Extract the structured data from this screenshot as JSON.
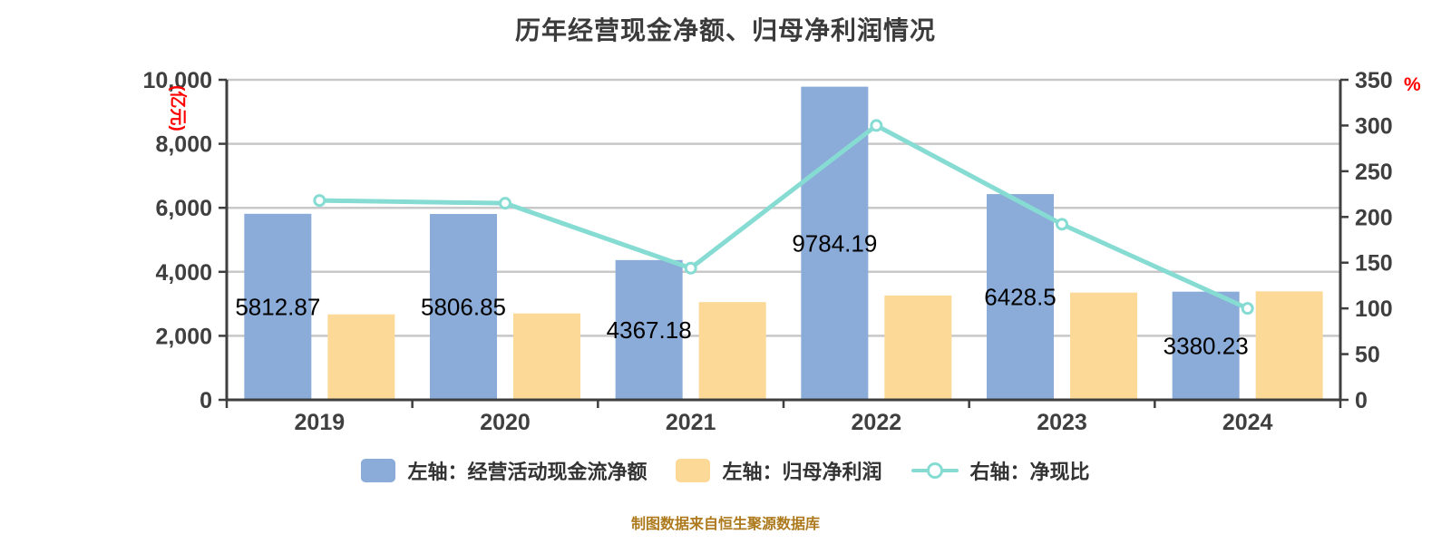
{
  "title": "历年经营现金净额、归母净利润情况",
  "source_note": "制图数据来自恒生聚源数据库",
  "colors": {
    "bar_blue": "#8bacd8",
    "bar_yellow": "#fdd998",
    "line_teal": "#86dcd3",
    "axis": "#3f3f3f",
    "grid": "#c8c8c8",
    "unit_red": "#ff0000",
    "bar_label": "#000000",
    "title_text": "#3b3b3b",
    "legend_text": "#333333",
    "source_text": "#ad7a1d"
  },
  "left_axis": {
    "unit_label": "(亿元)",
    "tick_labels": [
      "0",
      "2,000",
      "4,000",
      "6,000",
      "8,000",
      "10,000"
    ],
    "tick_values": [
      0,
      2000,
      4000,
      6000,
      8000,
      10000
    ]
  },
  "right_axis": {
    "unit_label": "%",
    "tick_labels": [
      "0",
      "50",
      "100",
      "150",
      "200",
      "250",
      "300",
      "350"
    ],
    "tick_values": [
      0,
      50,
      100,
      150,
      200,
      250,
      300,
      350
    ]
  },
  "legend": {
    "items": [
      {
        "key": "operating-cashflow",
        "label": "左轴：经营活动现金流净额",
        "color": "#8bacd8",
        "type": "bar"
      },
      {
        "key": "net-profit",
        "label": "左轴：归母净利润",
        "color": "#fdd998",
        "type": "bar"
      },
      {
        "key": "cash-ratio",
        "label": "右轴：净现比",
        "color": "#86dcd3",
        "type": "line"
      }
    ]
  },
  "chart_data": {
    "type": "bar",
    "subtype": "dual-axis bar + line combo",
    "title": "历年经营现金净额、归母净利润情况",
    "categories": [
      "2019",
      "2020",
      "2021",
      "2022",
      "2023",
      "2024"
    ],
    "series": [
      {
        "name": "左轴：经营活动现金流净额",
        "key": "operating-cashflow",
        "type": "bar",
        "axis": "left",
        "color": "#8bacd8",
        "values": [
          5812.87,
          5806.85,
          4367.18,
          9784.19,
          6428.5,
          3380.23
        ],
        "labels": [
          "5812.87",
          "5806.85",
          "4367.18",
          "9784.19",
          "6428.5",
          "3380.23"
        ]
      },
      {
        "name": "左轴：归母净利润",
        "key": "net-profit",
        "type": "bar",
        "axis": "left",
        "color": "#fdd998",
        "values": [
          2670,
          2700,
          3055,
          3260,
          3350,
          3390
        ],
        "estimated": true
      },
      {
        "name": "右轴：净现比",
        "key": "cash-ratio",
        "type": "line",
        "axis": "right",
        "color": "#86dcd3",
        "unit": "%",
        "values": [
          218,
          215,
          144,
          300,
          192,
          100
        ],
        "estimated": true
      }
    ],
    "left_ylim": [
      0,
      10000
    ],
    "right_ylim": [
      0,
      350
    ],
    "grid": true,
    "legend_position": "bottom"
  }
}
